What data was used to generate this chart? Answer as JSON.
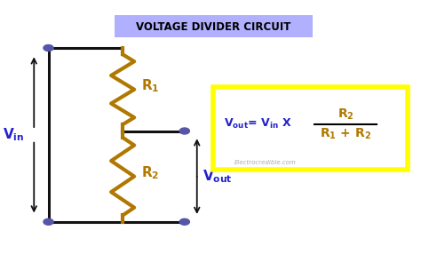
{
  "title": "VOLTAGE DIVIDER CIRCUIT",
  "title_bg": "#b0b0ff",
  "title_color": "black",
  "bg_color": "#ffffff",
  "circuit_color": "#111111",
  "resistor_color": "#b07800",
  "label_vin_color": "#2222cc",
  "label_vout_color": "#2222cc",
  "node_color": "#5555aa",
  "formula_box_color": "#ffff00",
  "formula_text_color": "#2222cc",
  "formula_r_color": "#b07800",
  "watermark": "Electrocredible.com",
  "lw": 2.2
}
